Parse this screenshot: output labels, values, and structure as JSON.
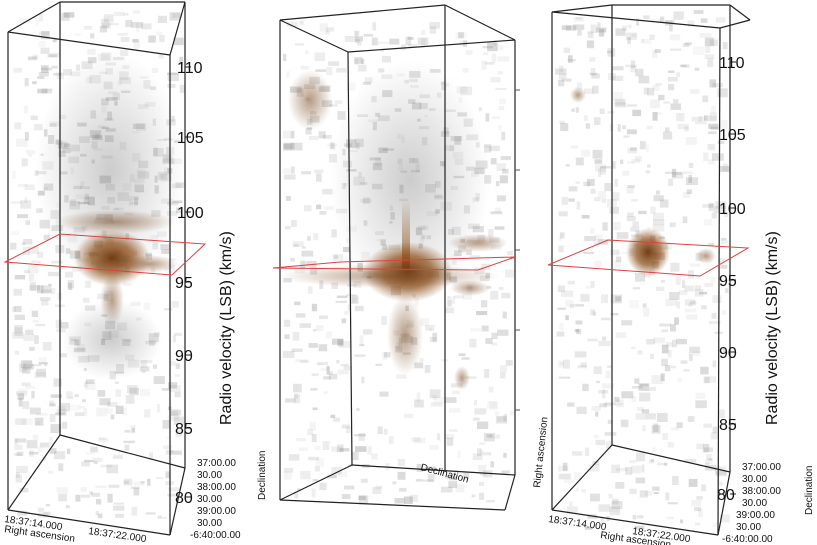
{
  "panels": [
    {
      "velocity_ticks": [
        "110",
        "105",
        "100",
        "95",
        "90",
        "85",
        "80"
      ],
      "velocity_axis_label": "Radio velocity (LSB) (km/s)",
      "ra_ticks": [
        "18:37:14.000",
        "18:37:22.000"
      ],
      "ra_label": "Right ascension",
      "dec_ticks": [
        "37:00.00",
        "30.00",
        "38:00.00",
        "30.00",
        "39:00.00",
        "30.00",
        "-6:40:00.00"
      ],
      "dec_label": "Declination"
    },
    {
      "dec_label": "Declination",
      "ra_label": "Right ascension"
    },
    {
      "velocity_ticks": [
        "110",
        "105",
        "100",
        "95",
        "90",
        "85",
        "80"
      ],
      "velocity_axis_label": "Radio velocity (LSB) (km/s)",
      "ra_ticks": [
        "18:37:14.000",
        "18:37:22.000"
      ],
      "ra_label": "Right ascension",
      "dec_ticks": [
        "37:00.00",
        "30.00",
        "38:00.00",
        "30.00",
        "39:00.00",
        "30.00",
        "-6:40:00.00"
      ],
      "dec_label": "Declination"
    }
  ],
  "colors": {
    "emission": "#8a4a14",
    "noise": "#8c8c8c",
    "plane": "#e04040",
    "frame": "#222222"
  }
}
